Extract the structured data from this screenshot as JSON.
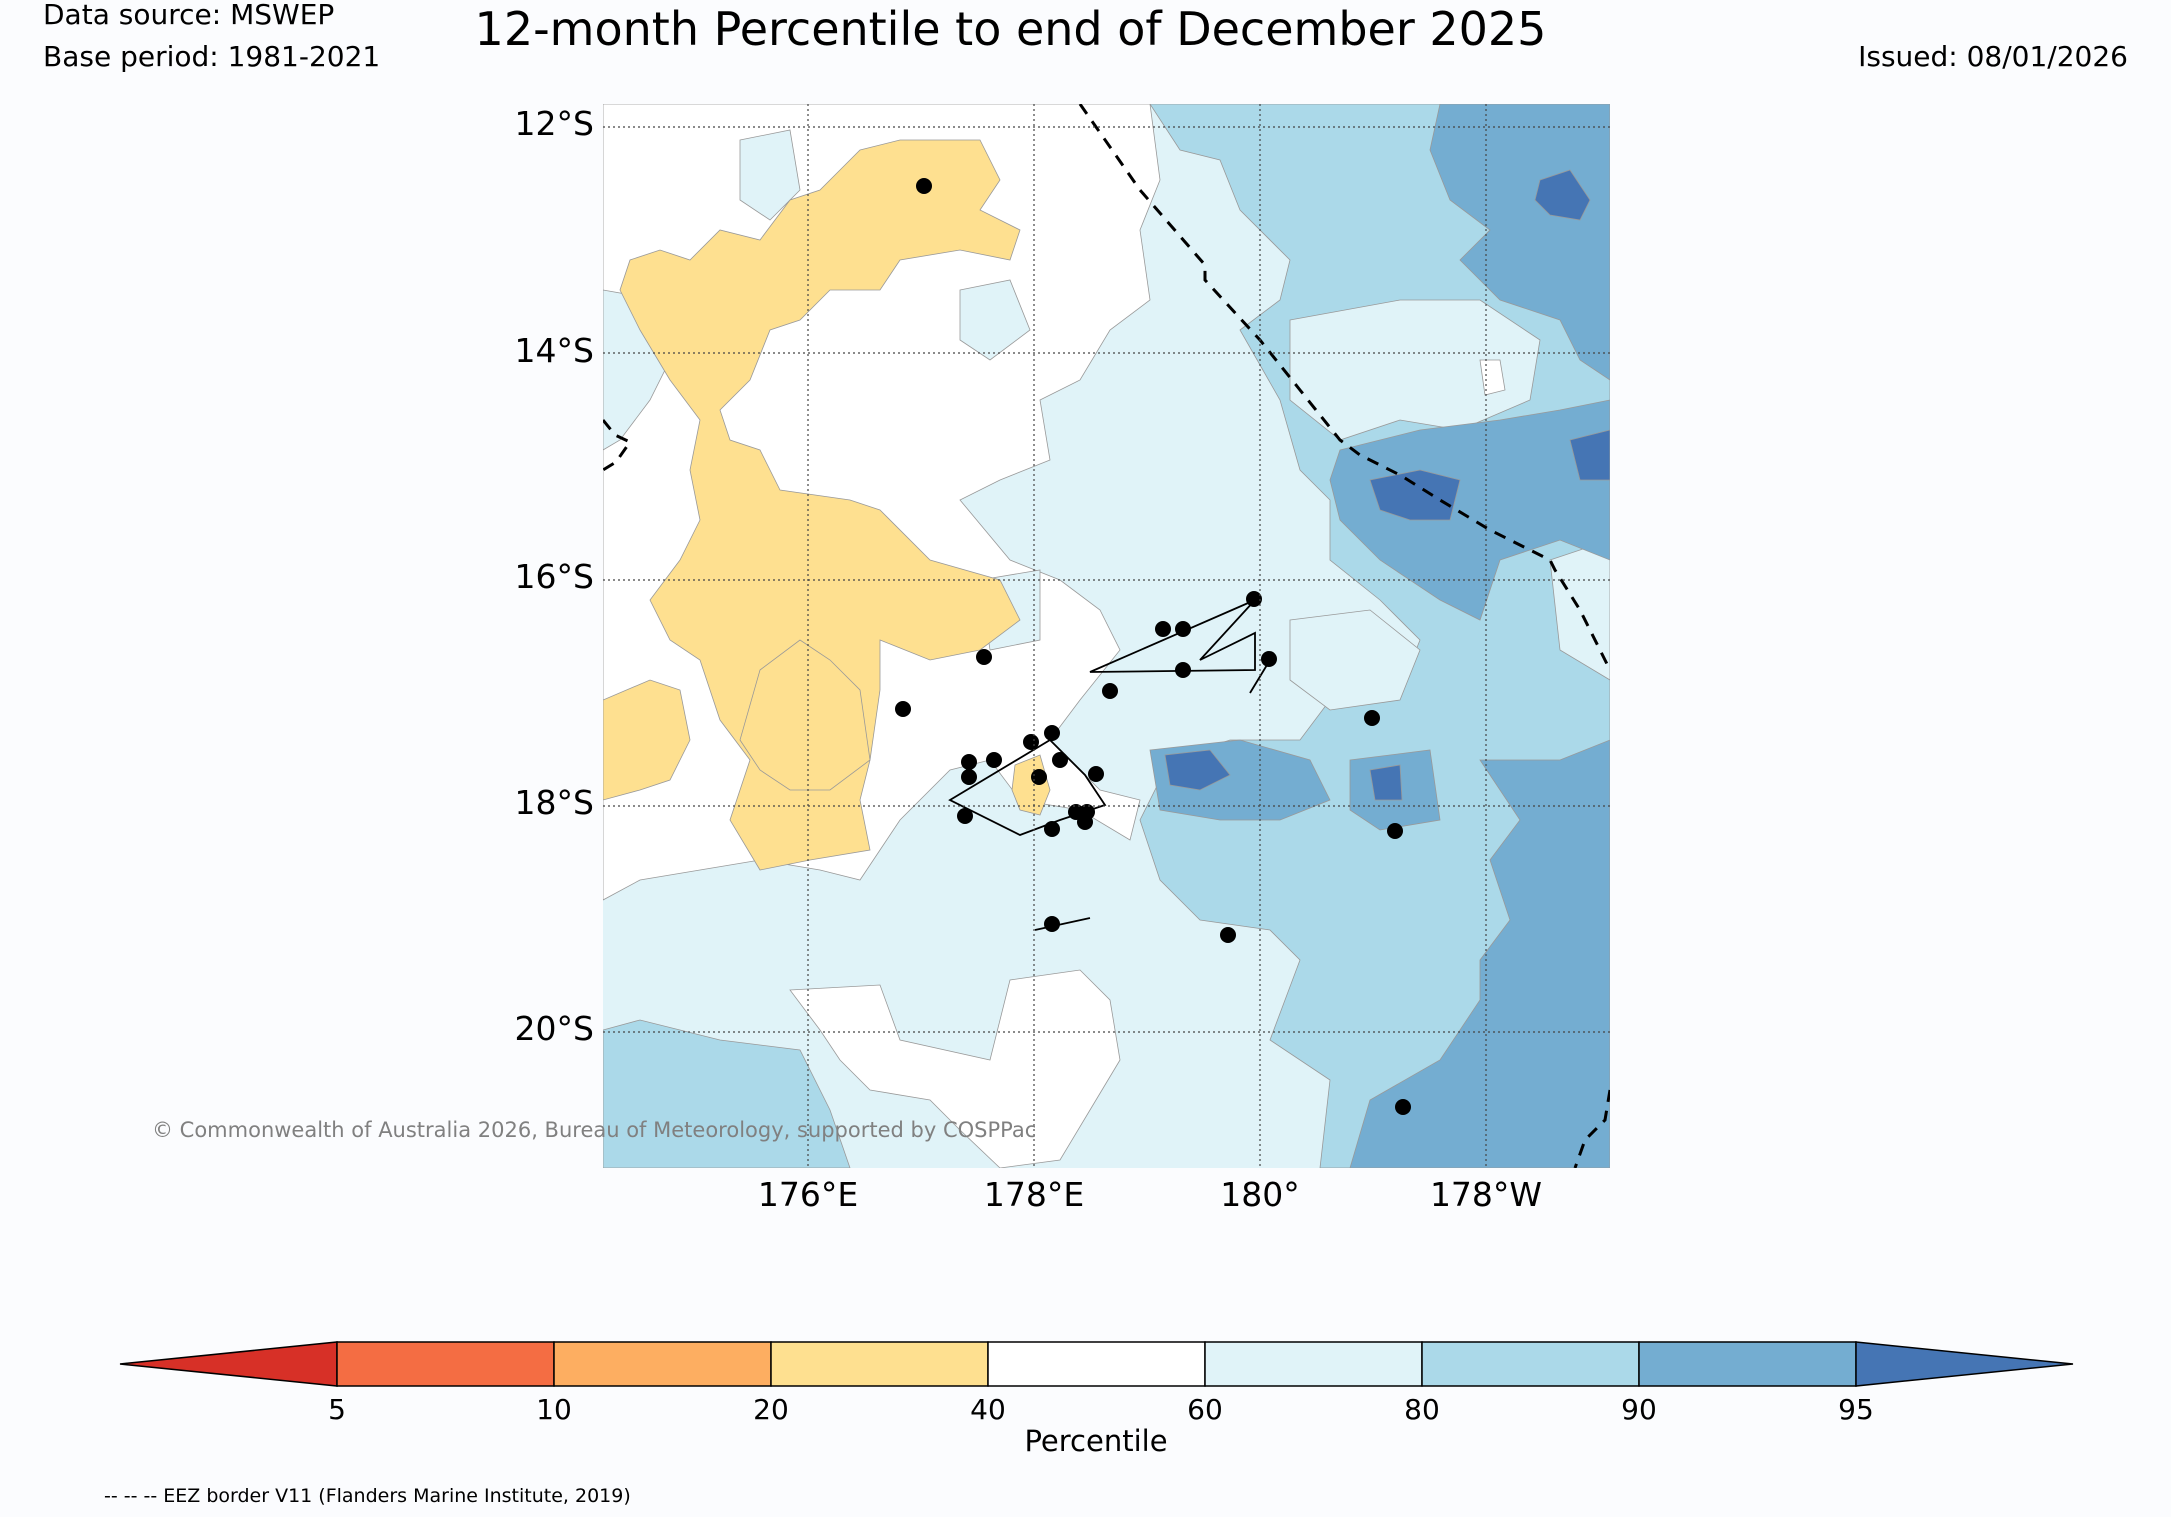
{
  "header": {
    "data_source": "Data source: MSWEP",
    "base_period": "Base period: 1981-2021",
    "title": "12-month Percentile to end of December 2025",
    "issued": "Issued: 08/01/2026"
  },
  "map": {
    "lat_labels": [
      "12°S",
      "14°S",
      "16°S",
      "18°S",
      "20°S"
    ],
    "lon_labels": [
      "176°E",
      "178°E",
      "180°",
      "178°W"
    ],
    "copyright": "© Commonwealth of Australia 2026, Bureau of Meteorology, supported by COSPPac",
    "colors": {
      "p20_40": "#fee090",
      "p40_60": "#ffffff",
      "p60_80": "#e0f3f8",
      "p80_90": "#abd9e9",
      "p90_95": "#74add1",
      "p95_plus": "#4575b4",
      "p10_20": "#fdae61",
      "p5_10": "#f46d43",
      "below_5": "#d73027"
    }
  },
  "colorbar": {
    "ticks": [
      "5",
      "10",
      "20",
      "40",
      "60",
      "80",
      "90",
      "95"
    ],
    "label": "Percentile",
    "colors": [
      "#d73027",
      "#f46d43",
      "#fdae61",
      "#fee090",
      "#ffffff",
      "#e0f3f8",
      "#abd9e9",
      "#74add1",
      "#4575b4"
    ]
  },
  "footer": {
    "eez_note": "-- -- -- EEZ border V11 (Flanders Marine Institute, 2019)"
  }
}
